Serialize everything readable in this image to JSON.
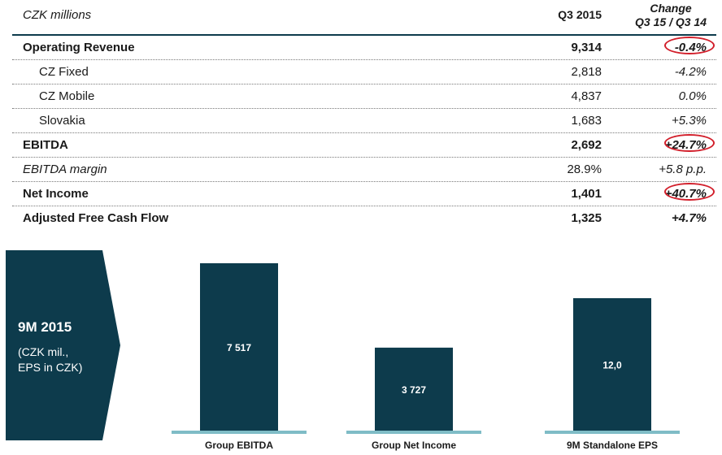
{
  "table": {
    "header": {
      "unit": "CZK millions",
      "period": "Q3 2015",
      "change_line1": "Change",
      "change_line2": "Q3 15 / Q3 14"
    },
    "rows": [
      {
        "label": "Operating Revenue",
        "value": "9,314",
        "change": "-0.4%"
      },
      {
        "label": "CZ Fixed",
        "value": "2,818",
        "change": "-4.2%"
      },
      {
        "label": "CZ Mobile",
        "value": "4,837",
        "change": "0.0%"
      },
      {
        "label": "Slovakia",
        "value": "1,683",
        "change": "+5.3%"
      },
      {
        "label": "EBITDA",
        "value": "2,692",
        "change": "+24.7%"
      },
      {
        "label": "EBITDA margin",
        "value": "28.9%",
        "change": "+5.8 p.p."
      },
      {
        "label": "Net Income",
        "value": "1,401",
        "change": "+40.7%"
      },
      {
        "label": "Adjusted Free Cash Flow",
        "value": "1,325",
        "change": "+4.7%"
      }
    ]
  },
  "panel": {
    "title": "9M 2015",
    "subtitle_line1": "(CZK mil.,",
    "subtitle_line2": "EPS in CZK)"
  },
  "chart_data": {
    "type": "bar",
    "categories": [
      "Group EBITDA",
      "Group Net Income",
      "9M Standalone EPS"
    ],
    "values": [
      7517,
      3727,
      12.0
    ],
    "value_labels": [
      "7 517",
      "3 727",
      "12,0"
    ],
    "title": "",
    "xlabel": "",
    "ylabel": "",
    "grid": false,
    "legend": "none"
  },
  "colors": {
    "bar": "#0d3b4c",
    "baseline": "#7fbcc6",
    "panel": "#0d3b4c",
    "highlight_ring": "#d21f2b"
  }
}
